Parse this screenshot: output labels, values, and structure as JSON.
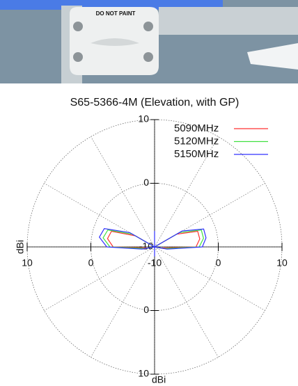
{
  "photo": {
    "label": "DO NOT PAINT"
  },
  "chart_data": {
    "type": "polar",
    "title": "S65-5366-4M (Elevation, with GP)",
    "r_label": "dBi",
    "rlim": [
      -10,
      10
    ],
    "rticks": [
      -10,
      0,
      10
    ],
    "grid": true,
    "theta": [
      0,
      10,
      20,
      30,
      40,
      50,
      60,
      70,
      80,
      90,
      100,
      110,
      120,
      130,
      140,
      150,
      160,
      170,
      180,
      190,
      200,
      210,
      220,
      230,
      240,
      250,
      260,
      270,
      280,
      290,
      300,
      310,
      320,
      330,
      340,
      350
    ],
    "series": [
      {
        "name": "5090MHz",
        "color": "#ff3030",
        "values": [
          -10,
          -10,
          -10,
          -10,
          -10,
          -10,
          -6,
          -2.8,
          -2.8,
          -3.5,
          -9,
          -10,
          -10,
          -10,
          -10,
          -10,
          -10,
          -10,
          -10,
          -10,
          -10,
          -10,
          -10,
          -10,
          -10,
          -10,
          -9,
          -3.5,
          -2.5,
          -2.8,
          -6.5,
          -10,
          -10,
          -10,
          -10,
          -10
        ]
      },
      {
        "name": "5120MHz",
        "color": "#40e040",
        "values": [
          -10,
          -10,
          -10,
          -10,
          -10,
          -10,
          -5.5,
          -2.2,
          -2.2,
          -3,
          -8.5,
          -10,
          -10,
          -10,
          -10,
          -10,
          -10,
          -10,
          -10,
          -10,
          -10,
          -10,
          -10,
          -10,
          -10,
          -10,
          -8.5,
          -3,
          -1.8,
          -2.2,
          -6,
          -10,
          -10,
          -10,
          -10,
          -10
        ]
      },
      {
        "name": "5150MHz",
        "color": "#3030ff",
        "values": [
          -7.5,
          -10,
          -10,
          -10,
          -10,
          -10,
          -5,
          -1.8,
          -1.8,
          -2.5,
          -8,
          -10,
          -10,
          -10,
          -10,
          -10,
          -10,
          -10,
          -8.5,
          -10,
          -10,
          -10,
          -10,
          -10,
          -10,
          -10,
          -8,
          -2.5,
          -1.2,
          -1.6,
          -5.5,
          -10,
          -10,
          -10,
          -10,
          -10
        ]
      }
    ]
  }
}
